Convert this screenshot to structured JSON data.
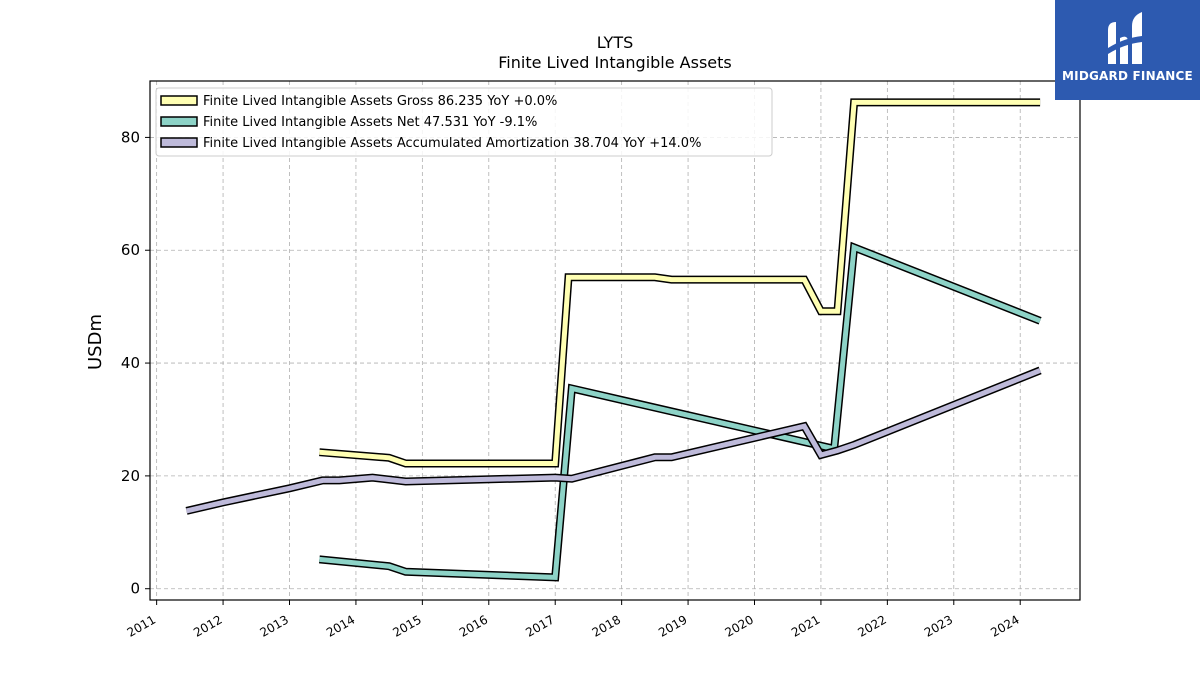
{
  "brand": {
    "name": "MIDGARD FINANCE",
    "color": "#2d5ab0",
    "icon": "midgard-logo-icon"
  },
  "chart_data": {
    "type": "line",
    "title": "LYTS",
    "subtitle": "Finite Lived Intangible Assets",
    "xlabel": "",
    "ylabel": "USDm",
    "xlim": [
      2010.9,
      2024.9
    ],
    "ylim": [
      -2,
      90
    ],
    "yticks": [
      0,
      20,
      40,
      60,
      80
    ],
    "xticks": [
      2011,
      2012,
      2013,
      2014,
      2015,
      2016,
      2017,
      2018,
      2019,
      2020,
      2021,
      2022,
      2023,
      2024
    ],
    "grid": true,
    "legend_position": "top-left",
    "series": [
      {
        "name": "Finite Lived Intangible Assets Gross  86.235 YoY +0.0%",
        "color": "#ffffb3",
        "x": [
          2013.45,
          2014.5,
          2014.75,
          2016.5,
          2017.0,
          2017.2,
          2018.5,
          2018.75,
          2020.75,
          2021.0,
          2021.25,
          2021.5,
          2024.3
        ],
        "y": [
          24.2,
          23.2,
          22.2,
          22.2,
          22.2,
          55.2,
          55.2,
          54.8,
          54.8,
          49.2,
          49.2,
          86.2,
          86.2
        ]
      },
      {
        "name": "Finite Lived Intangible Assets Net  47.531 YoY -9.1%",
        "color": "#8dd3c7",
        "x": [
          2013.45,
          2014.5,
          2014.75,
          2017.0,
          2017.25,
          2021.2,
          2021.5,
          2024.3
        ],
        "y": [
          5.2,
          4.0,
          3.0,
          2.0,
          35.5,
          24.8,
          60.5,
          47.5
        ]
      },
      {
        "name": "Finite Lived Intangible Assets Accumulated Amortization  38.704 YoY +14.0%",
        "color": "#bebada",
        "x": [
          2011.45,
          2012.0,
          2013.0,
          2013.5,
          2013.75,
          2014.25,
          2014.75,
          2017.0,
          2017.25,
          2018.5,
          2018.75,
          2020.75,
          2021.0,
          2021.25,
          2021.5,
          2024.3
        ],
        "y": [
          13.8,
          15.3,
          17.8,
          19.2,
          19.2,
          19.7,
          19.0,
          19.7,
          19.5,
          23.3,
          23.3,
          28.8,
          23.7,
          24.5,
          25.5,
          38.7
        ]
      }
    ]
  }
}
